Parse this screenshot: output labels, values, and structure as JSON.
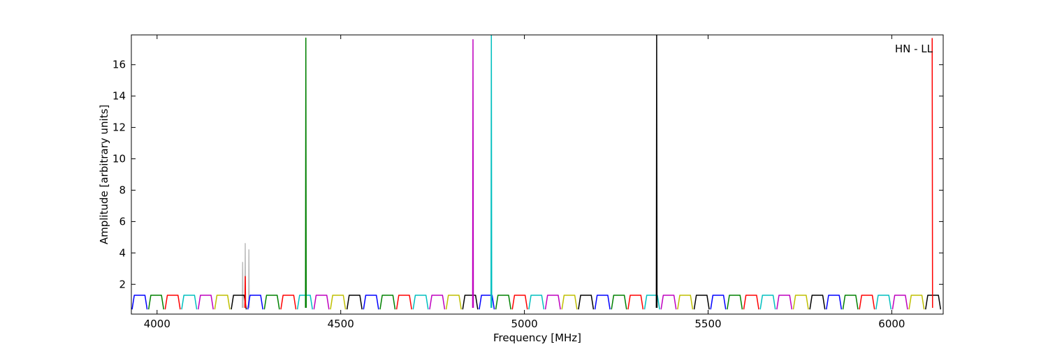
{
  "chart_data": {
    "type": "line",
    "xlabel": "Frequency [MHz]",
    "ylabel": "Amplitude [arbitrary units]",
    "annotation": "HN - LL",
    "xlim": [
      3930,
      6140
    ],
    "ylim": [
      0.1,
      17.9
    ],
    "xticks": [
      4000,
      4500,
      5000,
      5500,
      6000
    ],
    "yticks": [
      2,
      4,
      6,
      8,
      10,
      12,
      14,
      16
    ],
    "series": [
      {
        "color": "#bbbbbb",
        "x": [
          4232,
          4233,
          4234,
          4235,
          4239,
          4240,
          4241,
          4242,
          4249,
          4250,
          4251
        ],
        "values": [
          0.5,
          3.4,
          0.5,
          null,
          0.5,
          4.6,
          0.5,
          null,
          0.5,
          4.2,
          0.5
        ]
      },
      {
        "color": "#0000ff",
        "x": [
          3932,
          3938,
          3967,
          3973,
          3974,
          4247,
          4253,
          4282,
          4288,
          4289,
          4562,
          4568,
          4597,
          4603,
          4604,
          4877,
          4883,
          4912,
          4918,
          4919,
          5192,
          5198,
          5227,
          5233,
          5234,
          5507,
          5513,
          5542,
          5548,
          5549,
          5822,
          5828,
          5857,
          5863
        ],
        "values": [
          0.4,
          1.3,
          1.3,
          0.4,
          null,
          0.4,
          1.3,
          1.3,
          0.4,
          null,
          0.4,
          1.3,
          1.3,
          0.4,
          null,
          0.4,
          1.3,
          1.3,
          0.4,
          null,
          0.4,
          1.3,
          1.3,
          0.4,
          null,
          0.4,
          1.3,
          1.3,
          0.4,
          null,
          0.4,
          1.3,
          1.3,
          0.4
        ]
      },
      {
        "color": "#008000",
        "x": [
          3977,
          3983,
          4012,
          4018,
          4019,
          4292,
          4298,
          4327,
          4333,
          4334,
          4607,
          4613,
          4642,
          4648,
          4649,
          4922,
          4928,
          4957,
          4963,
          4964,
          5237,
          5243,
          5272,
          5278,
          5279,
          5552,
          5558,
          5587,
          5593,
          5594,
          5867,
          5873,
          5902,
          5908
        ],
        "values": [
          0.4,
          1.3,
          1.3,
          0.4,
          null,
          0.4,
          1.3,
          1.3,
          0.4,
          null,
          0.4,
          1.3,
          1.3,
          0.4,
          null,
          0.4,
          1.3,
          1.3,
          0.4,
          null,
          0.4,
          1.3,
          1.3,
          0.4,
          null,
          0.4,
          1.3,
          1.3,
          0.4,
          null,
          0.4,
          1.3,
          1.3,
          0.4
        ]
      },
      {
        "color": "#ff0000",
        "x": [
          4022,
          4028,
          4057,
          4063,
          4064,
          4337,
          4343,
          4372,
          4378,
          4379,
          4652,
          4658,
          4687,
          4693,
          4694,
          4967,
          4973,
          5002,
          5008,
          5009,
          5282,
          5288,
          5317,
          5323,
          5324,
          5597,
          5603,
          5632,
          5638,
          5639,
          5912,
          5918,
          5947,
          5953
        ],
        "values": [
          0.4,
          1.3,
          1.3,
          0.4,
          null,
          0.4,
          1.3,
          1.3,
          0.4,
          null,
          0.4,
          1.3,
          1.3,
          0.4,
          null,
          0.4,
          1.3,
          1.3,
          0.4,
          null,
          0.4,
          1.3,
          1.3,
          0.4,
          null,
          0.4,
          1.3,
          1.3,
          0.4,
          null,
          0.4,
          1.3,
          1.3,
          0.4
        ]
      },
      {
        "color": "#00bfbf",
        "x": [
          4067,
          4073,
          4102,
          4108,
          4109,
          4382,
          4388,
          4417,
          4423,
          4424,
          4697,
          4703,
          4732,
          4738,
          4739,
          5012,
          5018,
          5047,
          5053,
          5054,
          5327,
          5333,
          5362,
          5368,
          5369,
          5642,
          5648,
          5677,
          5683,
          5684,
          5957,
          5963,
          5992,
          5998
        ],
        "values": [
          0.4,
          1.3,
          1.3,
          0.4,
          null,
          0.4,
          1.3,
          1.3,
          0.4,
          null,
          0.4,
          1.3,
          1.3,
          0.4,
          null,
          0.4,
          1.3,
          1.3,
          0.4,
          null,
          0.4,
          1.3,
          1.3,
          0.4,
          null,
          0.4,
          1.3,
          1.3,
          0.4,
          null,
          0.4,
          1.3,
          1.3,
          0.4
        ]
      },
      {
        "color": "#bf00bf",
        "x": [
          4112,
          4118,
          4147,
          4153,
          4154,
          4427,
          4433,
          4462,
          4468,
          4469,
          4742,
          4748,
          4777,
          4783,
          4784,
          5057,
          5063,
          5092,
          5098,
          5099,
          5372,
          5378,
          5407,
          5413,
          5414,
          5687,
          5693,
          5722,
          5728,
          5729,
          6002,
          6008,
          6037,
          6043
        ],
        "values": [
          0.4,
          1.3,
          1.3,
          0.4,
          null,
          0.4,
          1.3,
          1.3,
          0.4,
          null,
          0.4,
          1.3,
          1.3,
          0.4,
          null,
          0.4,
          1.3,
          1.3,
          0.4,
          null,
          0.4,
          1.3,
          1.3,
          0.4,
          null,
          0.4,
          1.3,
          1.3,
          0.4,
          null,
          0.4,
          1.3,
          1.3,
          0.4
        ]
      },
      {
        "color": "#bfbf00",
        "x": [
          4157,
          4163,
          4192,
          4198,
          4199,
          4472,
          4478,
          4507,
          4513,
          4514,
          4787,
          4793,
          4822,
          4828,
          4829,
          5102,
          5108,
          5137,
          5143,
          5144,
          5417,
          5423,
          5452,
          5458,
          5459,
          5732,
          5738,
          5767,
          5773,
          5774,
          6047,
          6053,
          6082,
          6088
        ],
        "values": [
          0.4,
          1.3,
          1.3,
          0.4,
          null,
          0.4,
          1.3,
          1.3,
          0.4,
          null,
          0.4,
          1.3,
          1.3,
          0.4,
          null,
          0.4,
          1.3,
          1.3,
          0.4,
          null,
          0.4,
          1.3,
          1.3,
          0.4,
          null,
          0.4,
          1.3,
          1.3,
          0.4,
          null,
          0.4,
          1.3,
          1.3,
          0.4
        ]
      },
      {
        "color": "#000000",
        "x": [
          4202,
          4208,
          4237,
          4243,
          4244,
          4517,
          4523,
          4552,
          4558,
          4559,
          4832,
          4838,
          4867,
          4873,
          4874,
          5147,
          5153,
          5182,
          5188,
          5189,
          5462,
          5468,
          5497,
          5503,
          5504,
          5777,
          5783,
          5812,
          5818,
          5819,
          6092,
          6098,
          6127,
          6133
        ],
        "values": [
          0.4,
          1.3,
          1.3,
          0.4,
          null,
          0.4,
          1.3,
          1.3,
          0.4,
          null,
          0.4,
          1.3,
          1.3,
          0.4,
          null,
          0.4,
          1.3,
          1.3,
          0.4,
          null,
          0.4,
          1.3,
          1.3,
          0.4,
          null,
          0.4,
          1.3,
          1.3,
          0.4,
          null,
          0.4,
          1.3,
          1.3,
          0.4
        ]
      },
      {
        "color": "#ff0000",
        "x": [
          4239,
          4240,
          4241,
          6109,
          6110,
          6111
        ],
        "values": [
          0.5,
          2.5,
          0.5,
          null,
          17.7,
          0.5
        ]
      },
      {
        "color": "#008000",
        "x": [
          4404,
          4405,
          4406
        ],
        "values": [
          0.5,
          17.7,
          0.5
        ]
      },
      {
        "color": "#bf00bf",
        "x": [
          4859,
          4860,
          4861
        ],
        "values": [
          0.5,
          17.6,
          0.5
        ]
      },
      {
        "color": "#00bfbf",
        "x": [
          4909,
          4910,
          4911
        ],
        "values": [
          0.5,
          17.9,
          0.5
        ]
      },
      {
        "color": "#000000",
        "x": [
          5359,
          5360,
          5361
        ],
        "values": [
          0.5,
          17.9,
          0.5
        ]
      }
    ]
  }
}
